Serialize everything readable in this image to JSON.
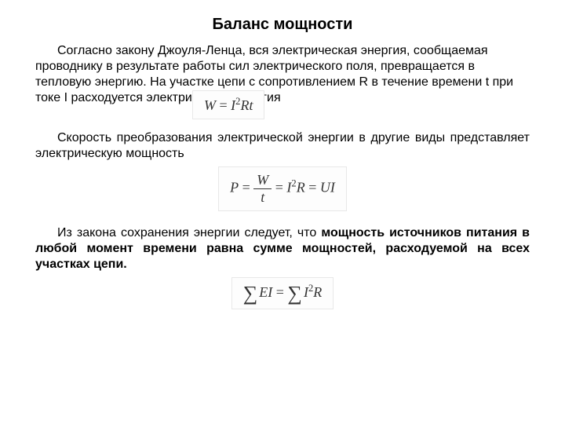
{
  "title": "Баланс мощности",
  "p1": "Согласно закону Джоуля-Ленца, вся электрическая энергия, сообщаемая проводнику в результате работы сил электрического поля, превращается в тепловую энергию. На участке цепи с сопротивлением R в течение времени t при токе I расходуется электрическая энергия",
  "p2": "Скорость преобразования электрической энергии в другие виды представляет электрическую мощность",
  "p3a": "Из закона сохранения энергии следует, что ",
  "p3b": "мощность источников питания в любой момент времени равна сумме мощностей, расходуемой на всех участках цепи.",
  "formulas": {
    "f1": {
      "lhs": "W",
      "eq": " = ",
      "I": "I",
      "sq": "2",
      "R": "R",
      "t": "t"
    },
    "f2": {
      "P": "P",
      "eq": " = ",
      "W": "W",
      "t": "t",
      "I": "I",
      "sq": "2",
      "R": "R",
      "U": "U"
    },
    "f3": {
      "E": "E",
      "I": "I",
      "sq": "2",
      "R": "R"
    }
  },
  "style": {
    "title_fontsize": 20,
    "body_fontsize": 16,
    "formula_fontsize": 18,
    "text_color": "#000000",
    "formula_border": "#e8e8e8",
    "formula_bg": "#fdfdfd",
    "background": "#ffffff"
  }
}
